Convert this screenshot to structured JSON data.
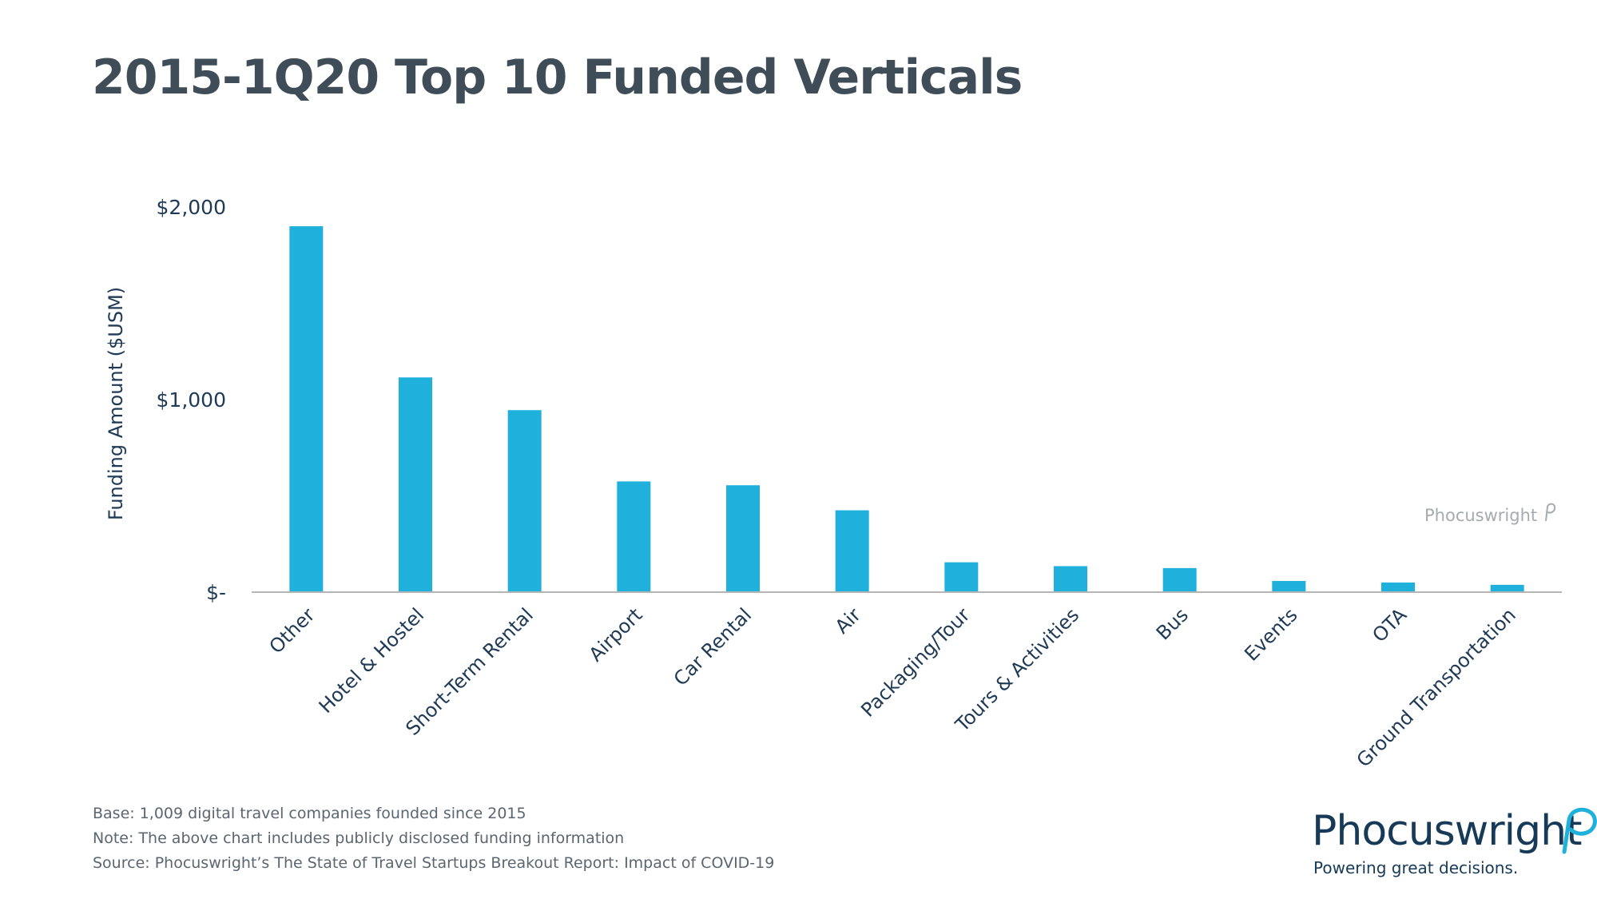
{
  "title": "2015-1Q20 Top 10 Funded Verticals",
  "chart_data": {
    "type": "bar",
    "title": "2015-1Q20 Top 10 Funded Verticals",
    "ylabel": "Funding Amount ($USM)",
    "xlabel": "",
    "categories": [
      "Other",
      "Hotel & Hostel",
      "Short-Term Rental",
      "Airport",
      "Car Rental",
      "Air",
      "Packaging/Tour",
      "Tours & Activities",
      "Bus",
      "Events",
      "OTA",
      "Ground Transportation"
    ],
    "values": [
      1900,
      1115,
      945,
      575,
      555,
      425,
      155,
      135,
      125,
      58,
      50,
      38
    ],
    "ylim": [
      0,
      2000
    ],
    "yticks": [
      0,
      1000,
      2000
    ],
    "ytick_labels": [
      "$-",
      "$1,000",
      "$2,000"
    ],
    "grid": false,
    "legend": "none",
    "bar_color": "#1fb0dc",
    "axis_color": "#b5b5b5",
    "text_color": "#1e3a55"
  },
  "footnotes": [
    "Base: 1,009 digital travel companies founded since 2015",
    "Note: The above chart includes publicly disclosed funding information",
    "Source: Phocuswright’s The State of Travel Startups Breakout Report: Impact of COVID-19"
  ],
  "watermark": "Phocuswright",
  "logo": {
    "name": "Phocuswright",
    "tagline": "Powering great decisions."
  }
}
